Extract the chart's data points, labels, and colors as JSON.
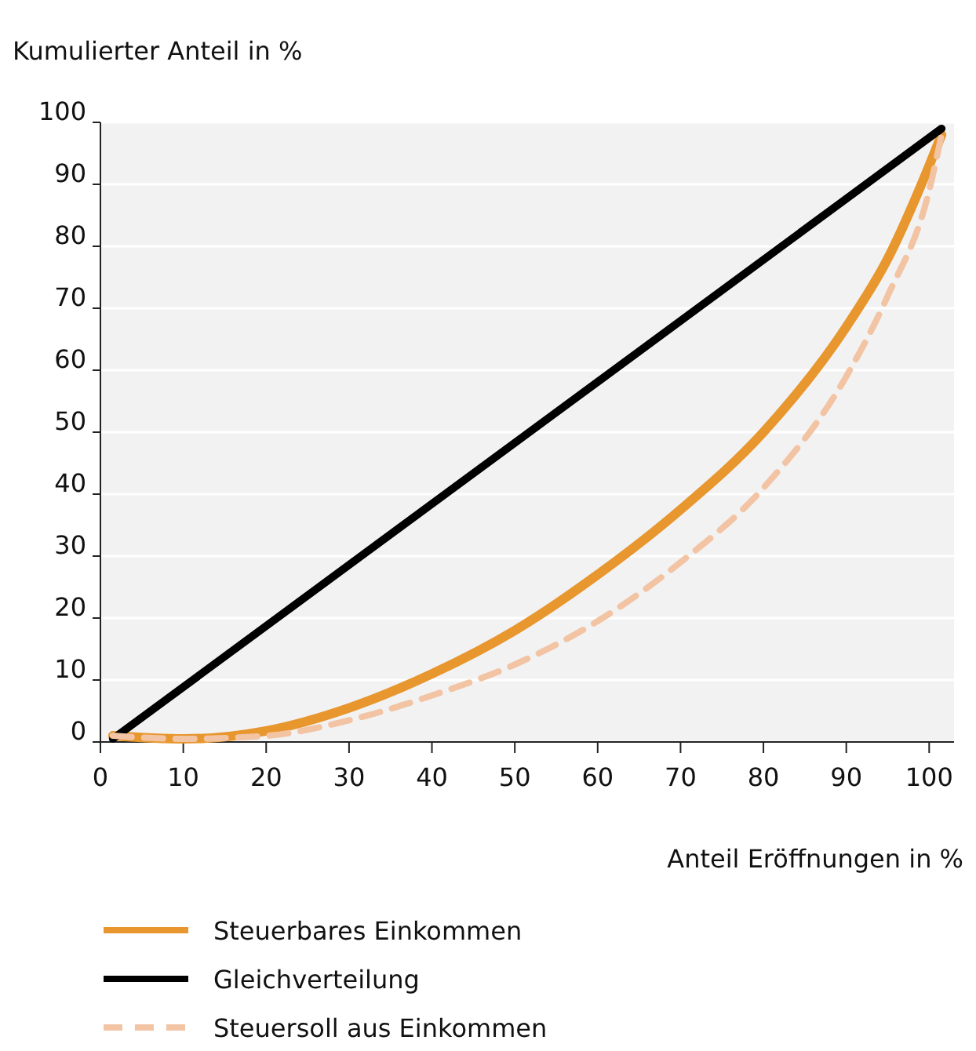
{
  "chart_data": {
    "type": "line",
    "ylabel": "Kumulierter Anteil in %",
    "xlabel": "Anteil Eröffnungen in %",
    "xlim": [
      0,
      103
    ],
    "xticks": [
      0,
      10,
      20,
      30,
      40,
      50,
      60,
      70,
      80,
      90,
      100
    ],
    "ylim": [
      0,
      100
    ],
    "yticks": [
      0,
      10,
      20,
      30,
      40,
      50,
      60,
      70,
      80,
      90,
      100
    ],
    "grid": "y",
    "legend": "bottom",
    "series": [
      {
        "name": "Steuerbares Einkommen",
        "color": "#e8962e",
        "line_style": "solid",
        "x": [
          1.5,
          10,
          20,
          30,
          40,
          50,
          60,
          70,
          80,
          90,
          95,
          100,
          101.5
        ],
        "values": [
          1,
          0.5,
          1.8,
          5.5,
          11,
          18,
          27,
          37.5,
          50,
          67,
          78,
          93,
          98
        ]
      },
      {
        "name": "Gleichverteilung",
        "color": "#000000",
        "line_style": "solid",
        "x": [
          1.5,
          101.5
        ],
        "values": [
          0.5,
          99
        ]
      },
      {
        "name": "Steuersoll aus Einkommen",
        "color": "#f2c4a4",
        "line_style": "dashed",
        "x": [
          1.5,
          10,
          20,
          30,
          40,
          50,
          60,
          70,
          80,
          90,
          95,
          100,
          101.5
        ],
        "values": [
          1,
          0.5,
          1,
          3.5,
          7.5,
          12.5,
          19.5,
          29,
          41,
          59,
          72,
          89,
          98
        ]
      }
    ]
  }
}
